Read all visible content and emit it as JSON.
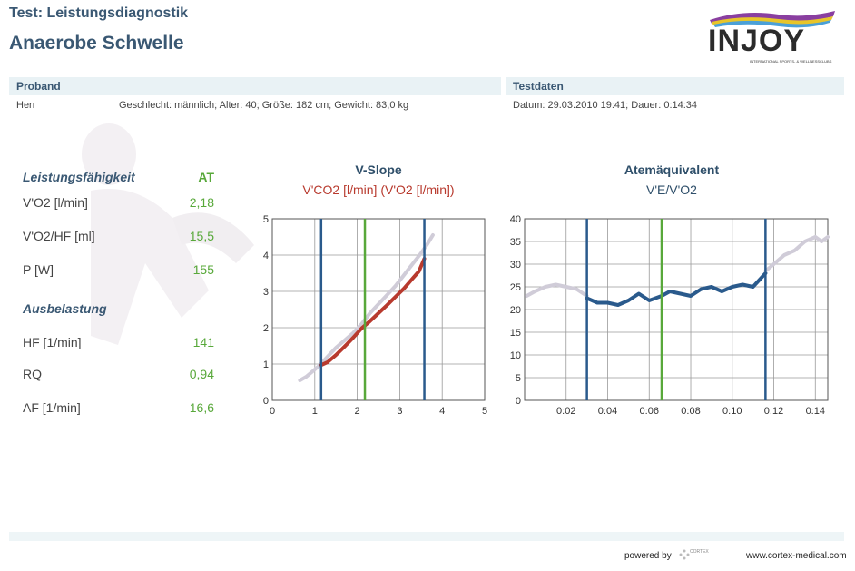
{
  "header": {
    "title": "Test: Leistungsdiagnostik",
    "subtitle": "Anaerobe Schwelle",
    "logo_text": "INJOY",
    "logo_tagline": "INTERNATIONAL SPORTS- & WELLNESSCLUBS"
  },
  "proband": {
    "label": "Proband",
    "salutation": "Herr",
    "details": "Geschlecht: männlich; Alter: 40; Größe: 182 cm; Gewicht: 83,0 kg"
  },
  "testdaten": {
    "label": "Testdaten",
    "details": "Datum: 29.03.2010 19:41; Dauer: 0:14:34"
  },
  "leistung": {
    "heading": "Leistungsfähigkeit",
    "column": "AT",
    "rows": [
      {
        "label": "V'O2 [l/min]",
        "value": "2,18"
      },
      {
        "label": "V'O2/HF [ml]",
        "value": "15,5"
      },
      {
        "label": "P [W]",
        "value": "155"
      }
    ]
  },
  "ausbelastung": {
    "heading": "Ausbelastung",
    "rows": [
      {
        "label": "HF [1/min]",
        "value": "141"
      },
      {
        "label": "RQ",
        "value": "0,94"
      },
      {
        "label": "AF [1/min]",
        "value": "16,6"
      }
    ]
  },
  "chart_data": [
    {
      "type": "scatter",
      "title": "V-Slope",
      "subtitle": "V'CO2 [l/min] (V'O2 [l/min])",
      "xlim": [
        0,
        5
      ],
      "ylim": [
        0,
        5
      ],
      "x_ticks": [
        "0",
        "1",
        "2",
        "3",
        "4",
        "5"
      ],
      "y_ticks": [
        "0",
        "1",
        "2",
        "3",
        "4",
        "5"
      ],
      "grid": true,
      "vertical_markers": [
        {
          "x": 1.15,
          "color": "#2a5a8c"
        },
        {
          "x": 2.18,
          "color": "#58a83a"
        },
        {
          "x": 3.58,
          "color": "#2a5a8c"
        }
      ],
      "series": [
        {
          "color": "#d0ccd8",
          "points": [
            [
              0.65,
              0.55
            ],
            [
              0.8,
              0.65
            ],
            [
              0.95,
              0.8
            ],
            [
              1.1,
              0.95
            ],
            [
              1.3,
              1.2
            ],
            [
              1.5,
              1.45
            ],
            [
              1.7,
              1.65
            ],
            [
              1.9,
              1.85
            ],
            [
              2.1,
              2.1
            ],
            [
              2.3,
              2.4
            ],
            [
              2.5,
              2.65
            ],
            [
              2.7,
              2.9
            ],
            [
              2.9,
              3.15
            ],
            [
              3.1,
              3.45
            ],
            [
              3.3,
              3.75
            ],
            [
              3.5,
              4.05
            ],
            [
              3.65,
              4.3
            ],
            [
              3.78,
              4.55
            ]
          ]
        },
        {
          "color": "#b83a2e",
          "points": [
            [
              1.15,
              0.97
            ],
            [
              1.3,
              1.05
            ],
            [
              1.5,
              1.25
            ],
            [
              1.7,
              1.48
            ],
            [
              1.9,
              1.72
            ],
            [
              2.1,
              1.98
            ],
            [
              2.3,
              2.18
            ],
            [
              2.5,
              2.4
            ],
            [
              2.7,
              2.62
            ],
            [
              2.9,
              2.85
            ],
            [
              3.1,
              3.08
            ],
            [
              3.3,
              3.35
            ],
            [
              3.45,
              3.55
            ],
            [
              3.58,
              3.9
            ]
          ]
        }
      ]
    },
    {
      "type": "line",
      "title": "Atemäquivalent",
      "subtitle": "V'E/V'O2",
      "xlim": [
        0,
        14.6
      ],
      "ylim": [
        0,
        40
      ],
      "x_ticks": [
        "0:02",
        "0:04",
        "0:06",
        "0:08",
        "0:10",
        "0:12",
        "0:14"
      ],
      "y_ticks": [
        "0",
        "5",
        "10",
        "15",
        "20",
        "25",
        "30",
        "35",
        "40"
      ],
      "grid": true,
      "vertical_markers": [
        {
          "x": 3.0,
          "color": "#2a5a8c"
        },
        {
          "x": 6.6,
          "color": "#58a83a"
        },
        {
          "x": 11.6,
          "color": "#2a5a8c"
        }
      ],
      "series": [
        {
          "color": "#d0ccd8",
          "points": [
            [
              0.1,
              23
            ],
            [
              0.5,
              24
            ],
            [
              1.0,
              25
            ],
            [
              1.5,
              25.5
            ],
            [
              2.0,
              25
            ],
            [
              2.5,
              24.5
            ],
            [
              3.0,
              23
            ]
          ]
        },
        {
          "color": "#2a5a8c",
          "points": [
            [
              3.0,
              22.5
            ],
            [
              3.5,
              21.5
            ],
            [
              4.0,
              21.5
            ],
            [
              4.5,
              21
            ],
            [
              5.0,
              22
            ],
            [
              5.5,
              23.5
            ],
            [
              6.0,
              22
            ],
            [
              6.6,
              23
            ],
            [
              7.0,
              24
            ],
            [
              7.5,
              23.5
            ],
            [
              8.0,
              23
            ],
            [
              8.5,
              24.5
            ],
            [
              9.0,
              25
            ],
            [
              9.5,
              24
            ],
            [
              10.0,
              25
            ],
            [
              10.5,
              25.5
            ],
            [
              11.0,
              25
            ],
            [
              11.6,
              28
            ]
          ]
        },
        {
          "color": "#d0ccd8",
          "points": [
            [
              11.6,
              28.5
            ],
            [
              12.0,
              30
            ],
            [
              12.5,
              32
            ],
            [
              13.0,
              33
            ],
            [
              13.5,
              35
            ],
            [
              14.0,
              36
            ],
            [
              14.3,
              35
            ],
            [
              14.6,
              36
            ]
          ]
        }
      ]
    }
  ],
  "footer": {
    "powered_by": "powered by",
    "cortex": "CORTEX",
    "url": "www.cortex-medical.com"
  }
}
